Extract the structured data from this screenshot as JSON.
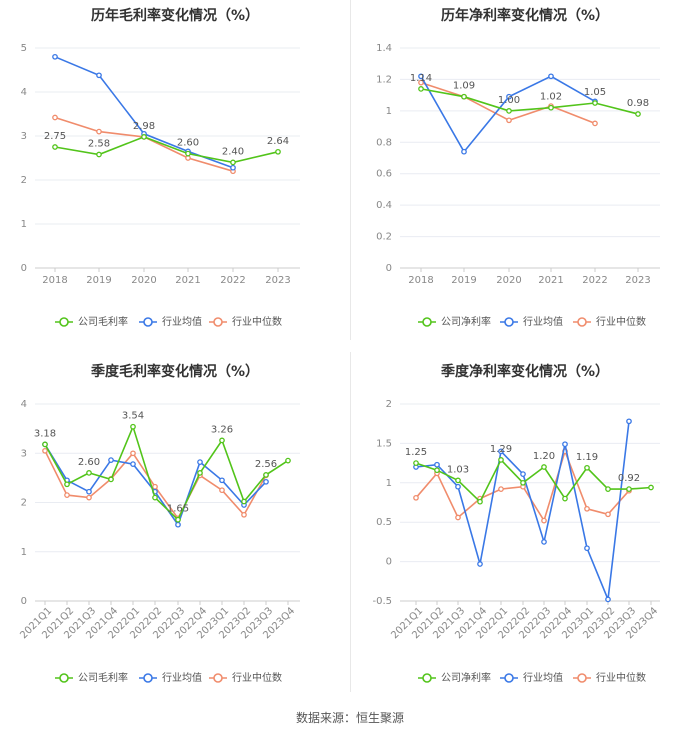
{
  "source_text": "数据来源：恒生聚源",
  "colors": {
    "company": "#52c41a",
    "industry_avg": "#3a78e6",
    "industry_median": "#f08c6c"
  },
  "chart_data": [
    {
      "type": "line",
      "title": "历年毛利率变化情况（%）",
      "categories": [
        "2018",
        "2019",
        "2020",
        "2021",
        "2022",
        "2023"
      ],
      "ylim": [
        0,
        5
      ],
      "yticks": [
        0,
        1,
        2,
        3,
        4,
        5
      ],
      "ytick_labels": [
        "0",
        "1",
        "2",
        "3",
        "4",
        "5"
      ],
      "series": [
        {
          "name": "公司毛利率",
          "values": [
            2.75,
            2.58,
            2.98,
            2.6,
            2.4,
            2.64
          ]
        },
        {
          "name": "行业均值",
          "values": [
            4.8,
            4.38,
            3.05,
            2.65,
            2.28,
            null
          ]
        },
        {
          "name": "行业中位数",
          "values": [
            3.42,
            3.1,
            2.98,
            2.5,
            2.2,
            null
          ]
        }
      ],
      "data_labels": [
        "2.75",
        "2.58",
        "2.98",
        "2.60",
        "2.40",
        "2.64"
      ]
    },
    {
      "type": "line",
      "title": "历年净利率变化情况（%）",
      "categories": [
        "2018",
        "2019",
        "2020",
        "2021",
        "2022",
        "2023"
      ],
      "ylim": [
        0,
        1.4
      ],
      "yticks": [
        0,
        0.2,
        0.4,
        0.6,
        0.8,
        1.0,
        1.2,
        1.4
      ],
      "ytick_labels": [
        "0",
        "0.2",
        "0.4",
        "0.6",
        "0.8",
        "1",
        "1.2",
        "1.4"
      ],
      "series": [
        {
          "name": "公司净利率",
          "values": [
            1.14,
            1.09,
            1.0,
            1.02,
            1.05,
            0.98
          ]
        },
        {
          "name": "行业均值",
          "values": [
            1.22,
            0.74,
            1.09,
            1.22,
            1.06,
            null
          ]
        },
        {
          "name": "行业中位数",
          "values": [
            1.18,
            1.09,
            0.94,
            1.03,
            0.92,
            null
          ]
        }
      ],
      "data_labels": [
        "1.14",
        "1.09",
        "1.00",
        "1.02",
        "1.05",
        "0.98"
      ]
    },
    {
      "type": "line",
      "title": "季度毛利率变化情况（%）",
      "categories": [
        "2021Q1",
        "2021Q2",
        "2021Q3",
        "2021Q4",
        "2022Q1",
        "2022Q2",
        "2022Q3",
        "2022Q4",
        "2023Q1",
        "2023Q2",
        "2023Q3",
        "2023Q4"
      ],
      "ylim": [
        0,
        4
      ],
      "yticks": [
        0,
        1,
        2,
        3,
        4
      ],
      "ytick_labels": [
        "0",
        "1",
        "2",
        "3",
        "4"
      ],
      "series": [
        {
          "name": "公司毛利率",
          "values": [
            3.18,
            2.37,
            2.6,
            2.47,
            3.54,
            2.1,
            1.65,
            2.6,
            3.26,
            2.02,
            2.56,
            2.85
          ]
        },
        {
          "name": "行业均值",
          "values": [
            3.18,
            2.45,
            2.22,
            2.86,
            2.78,
            2.22,
            1.55,
            2.82,
            2.45,
            1.95,
            2.42,
            null
          ]
        },
        {
          "name": "行业中位数",
          "values": [
            3.05,
            2.15,
            2.1,
            2.48,
            3.0,
            2.32,
            1.68,
            2.55,
            2.25,
            1.75,
            2.55,
            null
          ]
        }
      ],
      "data_labels": [
        "3.18",
        null,
        "2.60",
        null,
        "3.54",
        null,
        "1.65",
        null,
        "3.26",
        null,
        "2.56",
        null
      ]
    },
    {
      "type": "line",
      "title": "季度净利率变化情况（%）",
      "categories": [
        "2021Q1",
        "2021Q2",
        "2021Q3",
        "2021Q4",
        "2022Q1",
        "2022Q2",
        "2022Q3",
        "2022Q4",
        "2023Q1",
        "2023Q2",
        "2023Q3",
        "2023Q4"
      ],
      "ylim": [
        -0.5,
        2
      ],
      "yticks": [
        -0.5,
        0,
        0.5,
        1.0,
        1.5,
        2.0
      ],
      "ytick_labels": [
        "-0.5",
        "0",
        "0.5",
        "1",
        "1.5",
        "2"
      ],
      "series": [
        {
          "name": "公司净利率",
          "values": [
            1.25,
            1.16,
            1.03,
            0.76,
            1.29,
            1.0,
            1.2,
            0.8,
            1.19,
            0.92,
            0.92,
            0.94
          ]
        },
        {
          "name": "行业均值",
          "values": [
            1.2,
            1.23,
            0.95,
            -0.03,
            1.4,
            1.11,
            0.25,
            1.49,
            0.17,
            -0.48,
            1.78,
            null
          ]
        },
        {
          "name": "行业中位数",
          "values": [
            0.81,
            1.12,
            0.56,
            0.8,
            0.92,
            0.95,
            0.52,
            1.4,
            0.67,
            0.6,
            0.9,
            null
          ]
        }
      ],
      "data_labels": [
        "1.25",
        null,
        "1.03",
        null,
        "1.29",
        null,
        "1.20",
        null,
        "1.19",
        null,
        "0.92",
        null
      ]
    }
  ]
}
